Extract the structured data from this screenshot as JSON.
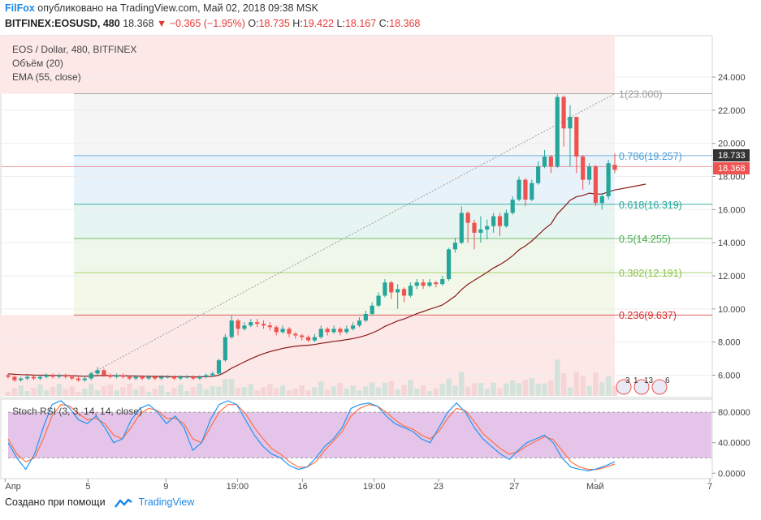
{
  "header": {
    "author": "FilFox",
    "published_text": "опубликовано на TradingView.com, Май 02, 2018 09:38 MSK",
    "symbol": "BITFINEX:EOSUSD, 480",
    "last": "18.368",
    "change": "▼ −0.365 (−1.95%)",
    "o_label": "O:",
    "o_value": "18.735",
    "h_label": "H:",
    "h_value": "19.422",
    "l_label": "L:",
    "l_value": "18.167",
    "c_label": "C:",
    "c_value": "18.368"
  },
  "legend": {
    "title": "EOS / Dollar, 480, BITFINEX",
    "volume": "Объём (20)",
    "ema": "EMA (55, close)",
    "stoch": "Stoch RSI (3, 3, 14, 14, close)"
  },
  "footer": {
    "text": "Создано при помощи",
    "brand": "TradingView"
  },
  "colors": {
    "up": "#26a69a",
    "down": "#ef5350",
    "ema": "#8b1a1a",
    "stoch_k": "#2196f3",
    "stoch_d": "#ff7043",
    "stoch_band": "#e1bee7"
  },
  "chart_data": {
    "type": "candlestick",
    "price_axis": {
      "ticks": [
        "24.000",
        "22.000",
        "20.000",
        "18.000",
        "16.000",
        "14.000",
        "12.000",
        "10.000",
        "8.000",
        "6.000"
      ],
      "range": [
        4.75,
        26.5
      ]
    },
    "x_ticks": [
      "Апр",
      "5",
      "9",
      "19:00",
      "16",
      "19:00",
      "23",
      "27",
      "Май",
      "7"
    ],
    "price_labels": {
      "current": "18.368",
      "high_mark": "18.733"
    },
    "fibonacci": [
      {
        "level": "1(23.000)",
        "value": 23.0,
        "color": "#9e9e9e"
      },
      {
        "level": "0.786(19.257)",
        "value": 19.257,
        "color": "#4a9cd6"
      },
      {
        "level": "0.618(16.319)",
        "value": 16.319,
        "color": "#26a69a"
      },
      {
        "level": "0.5(14.255)",
        "value": 14.255,
        "color": "#4caf50"
      },
      {
        "level": "0.382(12.191)",
        "value": 12.191,
        "color": "#8bc34a"
      },
      {
        "level": "0.236(9.637)",
        "value": 9.637,
        "color": "#d32f2f"
      }
    ],
    "candles": [
      [
        6.0,
        5.9,
        6.1,
        5.8
      ],
      [
        5.9,
        5.7,
        6.0,
        5.6
      ],
      [
        5.7,
        5.8,
        5.9,
        5.6
      ],
      [
        5.8,
        5.9,
        6.0,
        5.7
      ],
      [
        5.9,
        5.8,
        6.0,
        5.7
      ],
      [
        5.8,
        5.9,
        6.0,
        5.7
      ],
      [
        5.9,
        6.0,
        6.1,
        5.8
      ],
      [
        6.0,
        5.9,
        6.1,
        5.8
      ],
      [
        5.9,
        6.0,
        6.1,
        5.8
      ],
      [
        6.0,
        5.9,
        6.1,
        5.8
      ],
      [
        5.9,
        5.8,
        6.0,
        5.7
      ],
      [
        5.8,
        5.7,
        5.9,
        5.6
      ],
      [
        5.7,
        5.8,
        5.9,
        5.6
      ],
      [
        5.8,
        6.1,
        6.2,
        5.7
      ],
      [
        6.1,
        6.3,
        6.5,
        6.0
      ],
      [
        6.3,
        6.0,
        6.4,
        5.9
      ],
      [
        6.0,
        5.9,
        6.1,
        5.8
      ],
      [
        5.9,
        6.0,
        6.1,
        5.8
      ],
      [
        6.0,
        5.9,
        6.1,
        5.8
      ],
      [
        5.9,
        5.8,
        6.0,
        5.7
      ],
      [
        5.8,
        5.9,
        6.0,
        5.7
      ],
      [
        5.9,
        5.8,
        6.0,
        5.7
      ],
      [
        5.8,
        5.9,
        6.0,
        5.7
      ],
      [
        5.9,
        5.8,
        6.0,
        5.7
      ],
      [
        5.8,
        5.9,
        6.0,
        5.7
      ],
      [
        5.9,
        5.9,
        6.0,
        5.8
      ],
      [
        5.9,
        5.8,
        6.0,
        5.7
      ],
      [
        5.8,
        5.9,
        6.0,
        5.7
      ],
      [
        5.9,
        5.9,
        6.0,
        5.8
      ],
      [
        5.9,
        5.8,
        6.0,
        5.7
      ],
      [
        5.8,
        5.9,
        6.0,
        5.7
      ],
      [
        5.9,
        6.0,
        6.1,
        5.8
      ],
      [
        6.0,
        6.1,
        6.2,
        5.9
      ],
      [
        6.1,
        6.9,
        7.0,
        6.0
      ],
      [
        6.9,
        8.3,
        8.5,
        6.8
      ],
      [
        8.3,
        9.3,
        9.6,
        8.2
      ],
      [
        9.3,
        8.8,
        9.4,
        8.4
      ],
      [
        8.8,
        9.0,
        9.2,
        8.7
      ],
      [
        9.0,
        9.2,
        9.4,
        8.9
      ],
      [
        9.2,
        9.1,
        9.4,
        8.9
      ],
      [
        9.1,
        9.0,
        9.3,
        8.8
      ],
      [
        9.0,
        8.9,
        9.2,
        8.7
      ],
      [
        8.9,
        8.6,
        9.0,
        8.4
      ],
      [
        8.6,
        8.8,
        9.0,
        8.5
      ],
      [
        8.8,
        8.5,
        8.9,
        8.3
      ],
      [
        8.5,
        8.4,
        8.6,
        8.2
      ],
      [
        8.4,
        8.3,
        8.5,
        8.1
      ],
      [
        8.3,
        8.1,
        8.4,
        8.0
      ],
      [
        8.1,
        8.3,
        8.5,
        8.0
      ],
      [
        8.3,
        8.8,
        9.0,
        8.2
      ],
      [
        8.8,
        8.6,
        8.9,
        8.4
      ],
      [
        8.6,
        8.8,
        9.0,
        8.5
      ],
      [
        8.8,
        8.6,
        8.9,
        8.4
      ],
      [
        8.6,
        8.8,
        9.0,
        8.5
      ],
      [
        8.8,
        9.0,
        9.2,
        8.7
      ],
      [
        9.0,
        9.3,
        9.5,
        8.9
      ],
      [
        9.3,
        9.7,
        9.9,
        9.2
      ],
      [
        9.7,
        10.2,
        10.4,
        9.6
      ],
      [
        10.2,
        10.8,
        11.0,
        10.1
      ],
      [
        10.8,
        11.6,
        11.8,
        10.7
      ],
      [
        11.6,
        11.0,
        11.7,
        10.6
      ],
      [
        11.0,
        11.2,
        11.5,
        10.0
      ],
      [
        11.2,
        10.8,
        11.3,
        10.4
      ],
      [
        10.8,
        11.4,
        11.6,
        10.7
      ],
      [
        11.4,
        11.6,
        11.8,
        11.2
      ],
      [
        11.6,
        11.4,
        11.8,
        11.2
      ],
      [
        11.4,
        11.6,
        11.8,
        11.3
      ],
      [
        11.6,
        11.5,
        11.7,
        11.3
      ],
      [
        11.5,
        11.8,
        12.0,
        11.4
      ],
      [
        11.8,
        13.6,
        13.7,
        11.7
      ],
      [
        13.6,
        14.0,
        14.3,
        13.4
      ],
      [
        14.0,
        15.8,
        16.2,
        13.9
      ],
      [
        15.8,
        15.2,
        15.9,
        14.0
      ],
      [
        15.2,
        14.6,
        15.4,
        13.6
      ],
      [
        14.6,
        14.8,
        15.6,
        14.0
      ],
      [
        14.8,
        15.0,
        15.4,
        14.2
      ],
      [
        15.0,
        15.6,
        15.8,
        14.6
      ],
      [
        15.6,
        15.0,
        15.8,
        14.4
      ],
      [
        15.0,
        15.8,
        16.0,
        14.9
      ],
      [
        15.8,
        16.6,
        16.8,
        15.7
      ],
      [
        16.6,
        17.8,
        18.0,
        16.5
      ],
      [
        17.8,
        16.6,
        17.9,
        16.2
      ],
      [
        16.6,
        17.6,
        17.8,
        16.5
      ],
      [
        17.6,
        18.6,
        18.9,
        17.5
      ],
      [
        18.6,
        19.2,
        19.6,
        18.5
      ],
      [
        19.2,
        18.6,
        19.3,
        18.2
      ],
      [
        18.6,
        22.8,
        23.0,
        18.5
      ],
      [
        22.8,
        20.9,
        22.9,
        19.8
      ],
      [
        20.9,
        21.6,
        22.3,
        18.6
      ],
      [
        21.6,
        19.2,
        21.6,
        18.2
      ],
      [
        19.2,
        17.8,
        19.3,
        17.2
      ],
      [
        17.8,
        18.6,
        18.8,
        17.5
      ],
      [
        18.6,
        16.4,
        18.7,
        16.2
      ],
      [
        16.4,
        16.8,
        17.0,
        16.0
      ],
      [
        16.8,
        18.8,
        19.0,
        16.6
      ],
      [
        18.7,
        18.4,
        19.4,
        18.2
      ]
    ],
    "ema_start": 6.1,
    "stoch_axis": {
      "ticks": [
        "80.0000",
        "40.0000",
        "0.0000"
      ],
      "range": [
        -5,
        95
      ],
      "band": [
        20,
        80
      ]
    },
    "stoch_k": [
      40,
      20,
      5,
      25,
      60,
      90,
      95,
      85,
      70,
      65,
      75,
      60,
      40,
      45,
      70,
      85,
      90,
      80,
      65,
      75,
      60,
      30,
      40,
      70,
      90,
      95,
      90,
      70,
      50,
      35,
      25,
      20,
      10,
      5,
      8,
      20,
      35,
      45,
      60,
      85,
      90,
      92,
      88,
      75,
      65,
      60,
      55,
      45,
      40,
      60,
      80,
      92,
      80,
      60,
      45,
      35,
      25,
      18,
      30,
      40,
      45,
      50,
      40,
      20,
      8,
      5,
      3,
      6,
      10,
      15
    ],
    "stoch_d": [
      45,
      25,
      15,
      20,
      45,
      75,
      90,
      88,
      78,
      70,
      72,
      65,
      50,
      45,
      60,
      78,
      85,
      82,
      72,
      72,
      65,
      45,
      40,
      60,
      80,
      90,
      90,
      78,
      60,
      45,
      32,
      25,
      15,
      8,
      8,
      15,
      30,
      42,
      55,
      75,
      85,
      90,
      88,
      80,
      70,
      62,
      58,
      50,
      45,
      55,
      72,
      85,
      82,
      68,
      52,
      42,
      32,
      25,
      28,
      36,
      42,
      48,
      44,
      30,
      15,
      8,
      5,
      5,
      8,
      12
    ]
  }
}
